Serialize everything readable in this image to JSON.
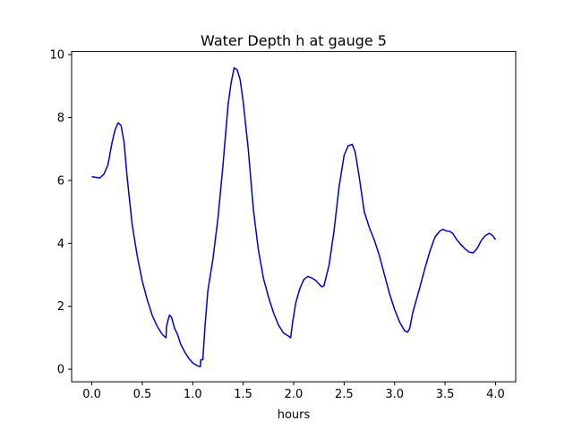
{
  "chart_data": {
    "type": "line",
    "title": "Water Depth h at gauge 5",
    "xlabel": "hours",
    "ylabel": "",
    "xlim": [
      -0.2,
      4.2
    ],
    "ylim": [
      -0.4,
      10.1
    ],
    "xticks": [
      0.0,
      0.5,
      1.0,
      1.5,
      2.0,
      2.5,
      3.0,
      3.5,
      4.0
    ],
    "xtick_labels": [
      "0.0",
      "0.5",
      "1.0",
      "1.5",
      "2.0",
      "2.5",
      "3.0",
      "3.5",
      "4.0"
    ],
    "yticks": [
      0,
      2,
      4,
      6,
      8,
      10
    ],
    "ytick_labels": [
      "0",
      "2",
      "4",
      "6",
      "8",
      "10"
    ],
    "grid": false,
    "legend": "none",
    "line_color": "#0000cc",
    "series": [
      {
        "x": [
          0.0,
          0.04,
          0.08,
          0.12,
          0.16,
          0.2,
          0.23,
          0.26,
          0.29,
          0.32,
          0.35,
          0.4,
          0.45,
          0.5,
          0.55,
          0.6,
          0.65,
          0.7,
          0.735,
          0.74,
          0.76,
          0.77,
          0.79,
          0.82,
          0.85,
          0.88,
          0.92,
          0.96,
          1.0,
          1.04,
          1.075,
          1.08,
          1.1,
          1.12,
          1.15,
          1.2,
          1.25,
          1.3,
          1.35,
          1.38,
          1.41,
          1.44,
          1.47,
          1.5,
          1.55,
          1.6,
          1.65,
          1.7,
          1.75,
          1.8,
          1.85,
          1.9,
          1.95,
          1.97,
          1.99,
          2.02,
          2.06,
          2.1,
          2.14,
          2.18,
          2.22,
          2.26,
          2.28,
          2.3,
          2.35,
          2.4,
          2.45,
          2.5,
          2.54,
          2.58,
          2.61,
          2.65,
          2.7,
          2.75,
          2.8,
          2.85,
          2.9,
          2.95,
          3.0,
          3.05,
          3.1,
          3.13,
          3.15,
          3.18,
          3.25,
          3.3,
          3.35,
          3.4,
          3.45,
          3.48,
          3.51,
          3.55,
          3.58,
          3.62,
          3.66,
          3.7,
          3.74,
          3.78,
          3.82,
          3.86,
          3.9,
          3.94,
          3.97,
          4.0
        ],
        "y": [
          6.12,
          6.1,
          6.08,
          6.2,
          6.5,
          7.2,
          7.6,
          7.83,
          7.75,
          7.2,
          6.1,
          4.6,
          3.6,
          2.8,
          2.2,
          1.7,
          1.35,
          1.1,
          1.0,
          1.35,
          1.62,
          1.72,
          1.65,
          1.3,
          1.1,
          0.8,
          0.55,
          0.35,
          0.2,
          0.12,
          0.08,
          0.3,
          0.3,
          1.3,
          2.5,
          3.5,
          4.8,
          6.5,
          8.4,
          9.1,
          9.58,
          9.52,
          9.2,
          8.5,
          7.0,
          5.1,
          3.8,
          2.9,
          2.3,
          1.8,
          1.4,
          1.15,
          1.05,
          1.0,
          1.5,
          2.1,
          2.55,
          2.85,
          2.95,
          2.9,
          2.82,
          2.68,
          2.62,
          2.65,
          3.3,
          4.4,
          5.8,
          6.8,
          7.1,
          7.15,
          6.9,
          6.1,
          5.0,
          4.5,
          4.1,
          3.6,
          3.0,
          2.4,
          1.9,
          1.5,
          1.22,
          1.18,
          1.3,
          1.8,
          2.6,
          3.2,
          3.75,
          4.2,
          4.4,
          4.45,
          4.4,
          4.38,
          4.3,
          4.1,
          3.95,
          3.82,
          3.72,
          3.7,
          3.85,
          4.1,
          4.25,
          4.32,
          4.25,
          4.12
        ]
      }
    ]
  }
}
